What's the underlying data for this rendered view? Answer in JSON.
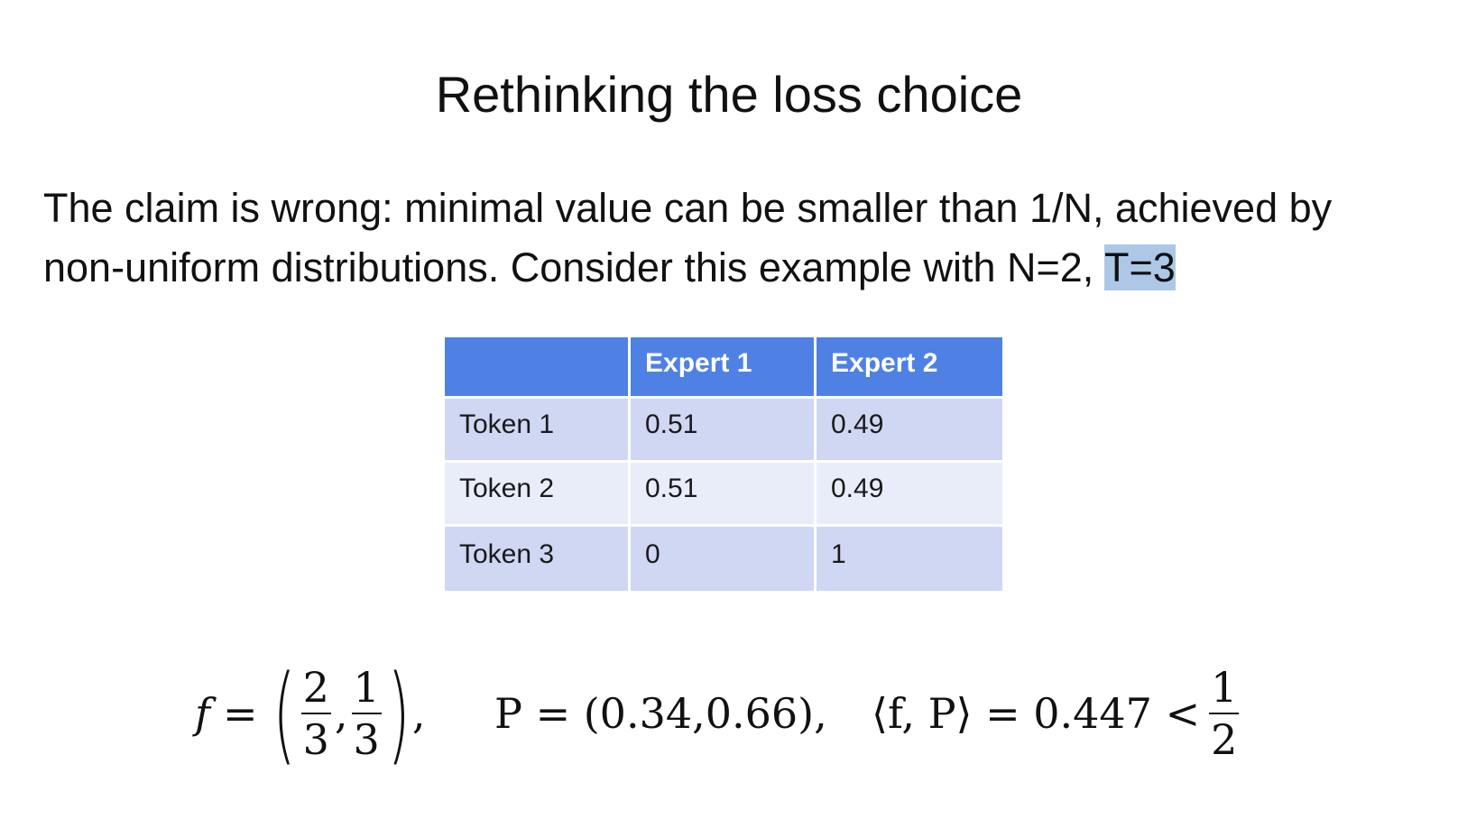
{
  "slide": {
    "title": "Rethinking the loss choice",
    "paragraph": {
      "line1": "The claim is wrong: minimal value can be smaller than 1/N, achieved by",
      "line2_before_highlight": "non-uniform distributions. Consider this example with N=2, ",
      "line2_highlight": "T=3"
    }
  },
  "table": {
    "columns": [
      "",
      "Expert 1",
      "Expert 2"
    ],
    "rows": [
      {
        "label": "Token 1",
        "values": [
          "0.51",
          "0.49"
        ]
      },
      {
        "label": "Token 2",
        "values": [
          "0.51",
          "0.49"
        ]
      },
      {
        "label": "Token 3",
        "values": [
          "0",
          "1"
        ]
      }
    ]
  },
  "formulas": {
    "f": {
      "lhs": "f",
      "eq": "=",
      "frac1_num": "2",
      "frac1_den": "3",
      "frac2_num": "1",
      "frac2_den": "3",
      "sep": ",",
      "trail": ","
    },
    "p": {
      "text": "P = (0.34,0.66),"
    },
    "inner": {
      "lhs": "⟨f, P⟩ = 0.447 <",
      "frac_num": "1",
      "frac_den": "2"
    }
  },
  "colors": {
    "header_bg": "#4f81e4",
    "row_dark": "#cfd7f3",
    "row_light": "#e9ecf9",
    "text_highlight": "#adc8e6"
  }
}
